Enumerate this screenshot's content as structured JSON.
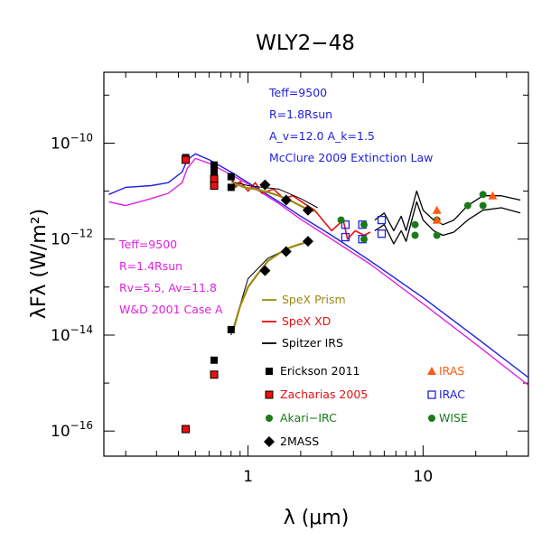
{
  "chart_data": {
    "type": "scatter",
    "title": "WLY2−48",
    "xlabel": "λ (μm)",
    "ylabel": "λFλ (W/m²)",
    "xscale": "log",
    "yscale": "log",
    "xlim": [
      0.15,
      40
    ],
    "ylim": [
      3e-17,
      3e-09
    ],
    "x_ticks": [
      {
        "value": 1,
        "label": "1"
      },
      {
        "value": 10,
        "label": "10"
      }
    ],
    "y_ticks": [
      {
        "value": 1e-16,
        "base": "10",
        "exp": "−16"
      },
      {
        "value": 1e-14,
        "base": "10",
        "exp": "−14"
      },
      {
        "value": 1e-12,
        "base": "10",
        "exp": "−12"
      },
      {
        "value": 1e-10,
        "base": "10",
        "exp": "−10"
      }
    ],
    "colors": {
      "blue_model": "#1f1fe0",
      "magenta_model": "#e020e0",
      "spex_prism": "#9a8a10",
      "spex_xd": "#e81010",
      "spitzer": "#000000",
      "erickson": "#000000",
      "zacharias": "#e81010",
      "iras": "#ff5a10",
      "irac": "#1f1fe0",
      "akari": "#1a7a1a",
      "wise": "#1a7a1a",
      "twomass": "#000000"
    },
    "annotations_blue": [
      "Teff=9500",
      "R=1.8Rsun",
      "A_v=12.0   A_k=1.5",
      "McClure 2009 Extinction Law"
    ],
    "annotations_magenta": [
      "Teff=9500",
      "R=1.4Rsun",
      "Rv=5.5, Av=11.8",
      "W&D 2001 Case A"
    ],
    "legend_lines": [
      {
        "label": "SpeX Prism",
        "color": "#9a8a10"
      },
      {
        "label": "SpeX XD",
        "color": "#e81010"
      },
      {
        "label": "Spitzer IRS",
        "color": "#000000"
      }
    ],
    "legend_markers_left": [
      {
        "label": "Erickson 2011",
        "marker": "square",
        "color": "#000000"
      },
      {
        "label": "Zacharias 2005",
        "marker": "square-outlined",
        "color": "#e81010"
      },
      {
        "label": "Akari−IRC",
        "marker": "circle",
        "color": "#1a7a1a"
      },
      {
        "label": "2MASS",
        "marker": "diamond",
        "color": "#000000"
      }
    ],
    "legend_markers_right": [
      {
        "label": "IRAS",
        "marker": "triangle",
        "color": "#ff5a10"
      },
      {
        "label": "IRAC",
        "marker": "open-square",
        "color": "#1f1fe0"
      },
      {
        "label": "WISE",
        "marker": "circle",
        "color": "#1a7a1a"
      }
    ],
    "series": {
      "model_blue": [
        [
          0.16,
          8.5e-12
        ],
        [
          0.2,
          1.2e-11
        ],
        [
          0.28,
          1.3e-11
        ],
        [
          0.35,
          1.5e-11
        ],
        [
          0.42,
          2.5e-11
        ],
        [
          0.45,
          4.5e-11
        ],
        [
          0.5,
          6e-11
        ],
        [
          0.6,
          4.5e-11
        ],
        [
          0.8,
          2.5e-11
        ],
        [
          1,
          1.5e-11
        ],
        [
          1.5,
          6e-12
        ],
        [
          2,
          3e-12
        ],
        [
          3,
          1.2e-12
        ],
        [
          5,
          3.5e-13
        ],
        [
          10,
          6e-14
        ],
        [
          20,
          9e-15
        ],
        [
          40,
          1.3e-15
        ]
      ],
      "model_magenta": [
        [
          0.16,
          6e-12
        ],
        [
          0.2,
          5e-12
        ],
        [
          0.28,
          7e-12
        ],
        [
          0.35,
          9e-12
        ],
        [
          0.42,
          1.5e-11
        ],
        [
          0.45,
          3e-11
        ],
        [
          0.5,
          4.8e-11
        ],
        [
          0.6,
          3.8e-11
        ],
        [
          0.8,
          2.2e-11
        ],
        [
          1,
          1.4e-11
        ],
        [
          1.5,
          5.5e-12
        ],
        [
          2,
          2.6e-12
        ],
        [
          3,
          1e-12
        ],
        [
          5,
          3e-13
        ],
        [
          10,
          4.5e-14
        ],
        [
          20,
          6.5e-15
        ],
        [
          40,
          9e-16
        ]
      ],
      "model_fit_upper": [
        [
          0.8,
          1.6e-11
        ],
        [
          1,
          1.3e-11
        ],
        [
          1.5,
          1.1e-11
        ],
        [
          2,
          7e-12
        ],
        [
          2.5,
          4.5e-12
        ]
      ],
      "model_fit_lower": [
        [
          0.8,
          1e-14
        ],
        [
          1,
          1.5e-13
        ],
        [
          1.3,
          4e-13
        ],
        [
          1.7,
          6.5e-13
        ],
        [
          2.3,
          9e-13
        ]
      ],
      "spex_prism_upper": [
        [
          0.82,
          1.5e-11
        ],
        [
          0.95,
          1.2e-11
        ],
        [
          1.1,
          1.1e-11
        ],
        [
          1.3,
          9.5e-12
        ],
        [
          1.5,
          8e-12
        ],
        [
          1.8,
          6e-12
        ],
        [
          2.1,
          4.5e-12
        ],
        [
          2.4,
          3.8e-12
        ]
      ],
      "spex_prism_lower": [
        [
          0.82,
          1.2e-14
        ],
        [
          0.9,
          4e-14
        ],
        [
          1.0,
          1e-13
        ],
        [
          1.15,
          2e-13
        ],
        [
          1.3,
          3.5e-13
        ],
        [
          1.5,
          5e-13
        ],
        [
          1.7,
          6.5e-13
        ],
        [
          2.0,
          8e-13
        ],
        [
          2.3,
          9e-13
        ]
      ],
      "spex_xd": [
        [
          0.8,
          2e-11
        ],
        [
          0.85,
          1.2e-11
        ],
        [
          0.9,
          1.6e-11
        ],
        [
          1.0,
          1e-11
        ],
        [
          1.1,
          1.5e-11
        ],
        [
          1.2,
          9e-12
        ],
        [
          1.4,
          1.1e-11
        ],
        [
          1.6,
          7e-12
        ],
        [
          1.8,
          8e-12
        ],
        [
          2.1,
          5.5e-12
        ],
        [
          2.4,
          4e-12
        ],
        [
          3.0,
          1.5e-12
        ],
        [
          3.5,
          2.5e-12
        ],
        [
          3.7,
          1e-12
        ],
        [
          4.1,
          1.5e-12
        ],
        [
          4.6,
          1.2e-12
        ],
        [
          5.0,
          1.4e-12
        ]
      ],
      "spitzer_upper": [
        [
          5.3,
          2.5e-12
        ],
        [
          6,
          3.5e-12
        ],
        [
          6.8,
          1.5e-12
        ],
        [
          7.5,
          3e-12
        ],
        [
          8,
          1.5e-12
        ],
        [
          9.2,
          1e-11
        ],
        [
          10,
          4e-12
        ],
        [
          11.5,
          2.5e-12
        ],
        [
          13,
          2e-12
        ],
        [
          15,
          2.5e-12
        ],
        [
          18,
          5e-12
        ],
        [
          22,
          8e-12
        ],
        [
          28,
          8e-12
        ],
        [
          36,
          6.5e-12
        ]
      ],
      "spitzer_lower": [
        [
          5.3,
          1.5e-12
        ],
        [
          6,
          2e-12
        ],
        [
          6.8,
          8e-13
        ],
        [
          7.5,
          1.5e-12
        ],
        [
          8,
          9e-13
        ],
        [
          9.2,
          6e-12
        ],
        [
          10,
          2.5e-12
        ],
        [
          11.5,
          1.5e-12
        ],
        [
          13,
          1.2e-12
        ],
        [
          15,
          1.4e-12
        ],
        [
          18,
          2.5e-12
        ],
        [
          22,
          4e-12
        ],
        [
          28,
          4.5e-12
        ],
        [
          36,
          3.5e-12
        ]
      ],
      "erickson": [
        [
          0.44,
          5e-11
        ],
        [
          0.64,
          3.5e-11
        ],
        [
          0.64,
          2.5e-11
        ],
        [
          0.64,
          1.5e-11
        ],
        [
          0.8,
          2e-11
        ],
        [
          0.8,
          1.2e-11
        ],
        [
          0.8,
          1.3e-14
        ],
        [
          0.64,
          3e-15
        ],
        [
          0.64,
          1.5e-15
        ]
      ],
      "zacharias": [
        [
          0.44,
          4.5e-11
        ],
        [
          0.64,
          1.8e-11
        ],
        [
          0.64,
          1.3e-11
        ],
        [
          0.64,
          1.5e-15
        ],
        [
          0.44,
          1.1e-16
        ]
      ],
      "twomass": [
        [
          1.25,
          1.35e-11
        ],
        [
          1.25,
          2.2e-13
        ],
        [
          1.65,
          6.5e-12
        ],
        [
          1.65,
          5.5e-13
        ],
        [
          2.2,
          4e-12
        ],
        [
          2.2,
          9e-13
        ]
      ],
      "irac": [
        [
          3.6,
          2e-12
        ],
        [
          3.6,
          1.1e-12
        ],
        [
          4.5,
          2e-12
        ],
        [
          4.5,
          1e-12
        ],
        [
          5.8,
          2.5e-12
        ],
        [
          5.8,
          1.3e-12
        ]
      ],
      "akari": [
        [
          9,
          2e-12
        ],
        [
          18,
          5e-12
        ],
        [
          9,
          1.2e-12
        ]
      ],
      "wise": [
        [
          3.4,
          2.5e-12
        ],
        [
          4.6,
          2e-12
        ],
        [
          12,
          2.5e-12
        ],
        [
          22,
          8.5e-12
        ],
        [
          22,
          5e-12
        ],
        [
          12,
          1.2e-12
        ],
        [
          4.6,
          1e-12
        ]
      ],
      "iras": [
        [
          12,
          4e-12
        ],
        [
          12,
          2.5e-12
        ],
        [
          25,
          8e-12
        ]
      ]
    }
  }
}
